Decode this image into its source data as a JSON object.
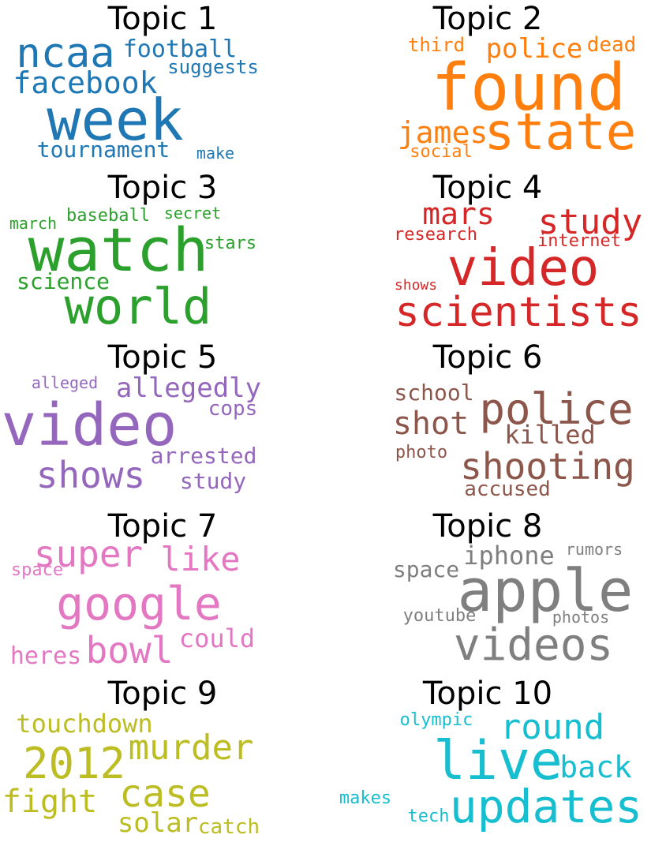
{
  "colors": {
    "Topic 1": "#1f77b4",
    "Topic 2": "#ff7f0e",
    "Topic 3": "#2ca02c",
    "Topic 4": "#d62728",
    "Topic 5": "#9467bd",
    "Topic 6": "#8c564b",
    "Topic 7": "#e377c2",
    "Topic 8": "#7f7f7f",
    "Topic 9": "#bcbd22",
    "Topic 10": "#17becf"
  },
  "chart_data": {
    "type": "wordcloud",
    "topics": [
      {
        "title": "Topic 1",
        "words": [
          "week",
          "ncaa",
          "facebook",
          "football",
          "tournament",
          "suggests",
          "make"
        ]
      },
      {
        "title": "Topic 2",
        "words": [
          "found",
          "state",
          "police",
          "james",
          "third",
          "dead",
          "social"
        ]
      },
      {
        "title": "Topic 3",
        "words": [
          "watch",
          "world",
          "science",
          "baseball",
          "march",
          "secret",
          "stars"
        ]
      },
      {
        "title": "Topic 4",
        "words": [
          "video",
          "scientists",
          "study",
          "mars",
          "research",
          "internet",
          "shows"
        ]
      },
      {
        "title": "Topic 5",
        "words": [
          "video",
          "shows",
          "allegedly",
          "arrested",
          "study",
          "cops",
          "alleged"
        ]
      },
      {
        "title": "Topic 6",
        "words": [
          "police",
          "shooting",
          "shot",
          "killed",
          "school",
          "accused",
          "photo"
        ]
      },
      {
        "title": "Topic 7",
        "words": [
          "google",
          "super",
          "bowl",
          "like",
          "could",
          "heres",
          "space"
        ]
      },
      {
        "title": "Topic 8",
        "words": [
          "apple",
          "videos",
          "iphone",
          "space",
          "youtube",
          "rumors",
          "photos"
        ]
      },
      {
        "title": "Topic 9",
        "words": [
          "2012",
          "murder",
          "case",
          "fight",
          "touchdown",
          "solar",
          "catch"
        ]
      },
      {
        "title": "Topic 10",
        "words": [
          "live",
          "updates",
          "round",
          "back",
          "olympic",
          "makes",
          "tech"
        ]
      }
    ]
  }
}
